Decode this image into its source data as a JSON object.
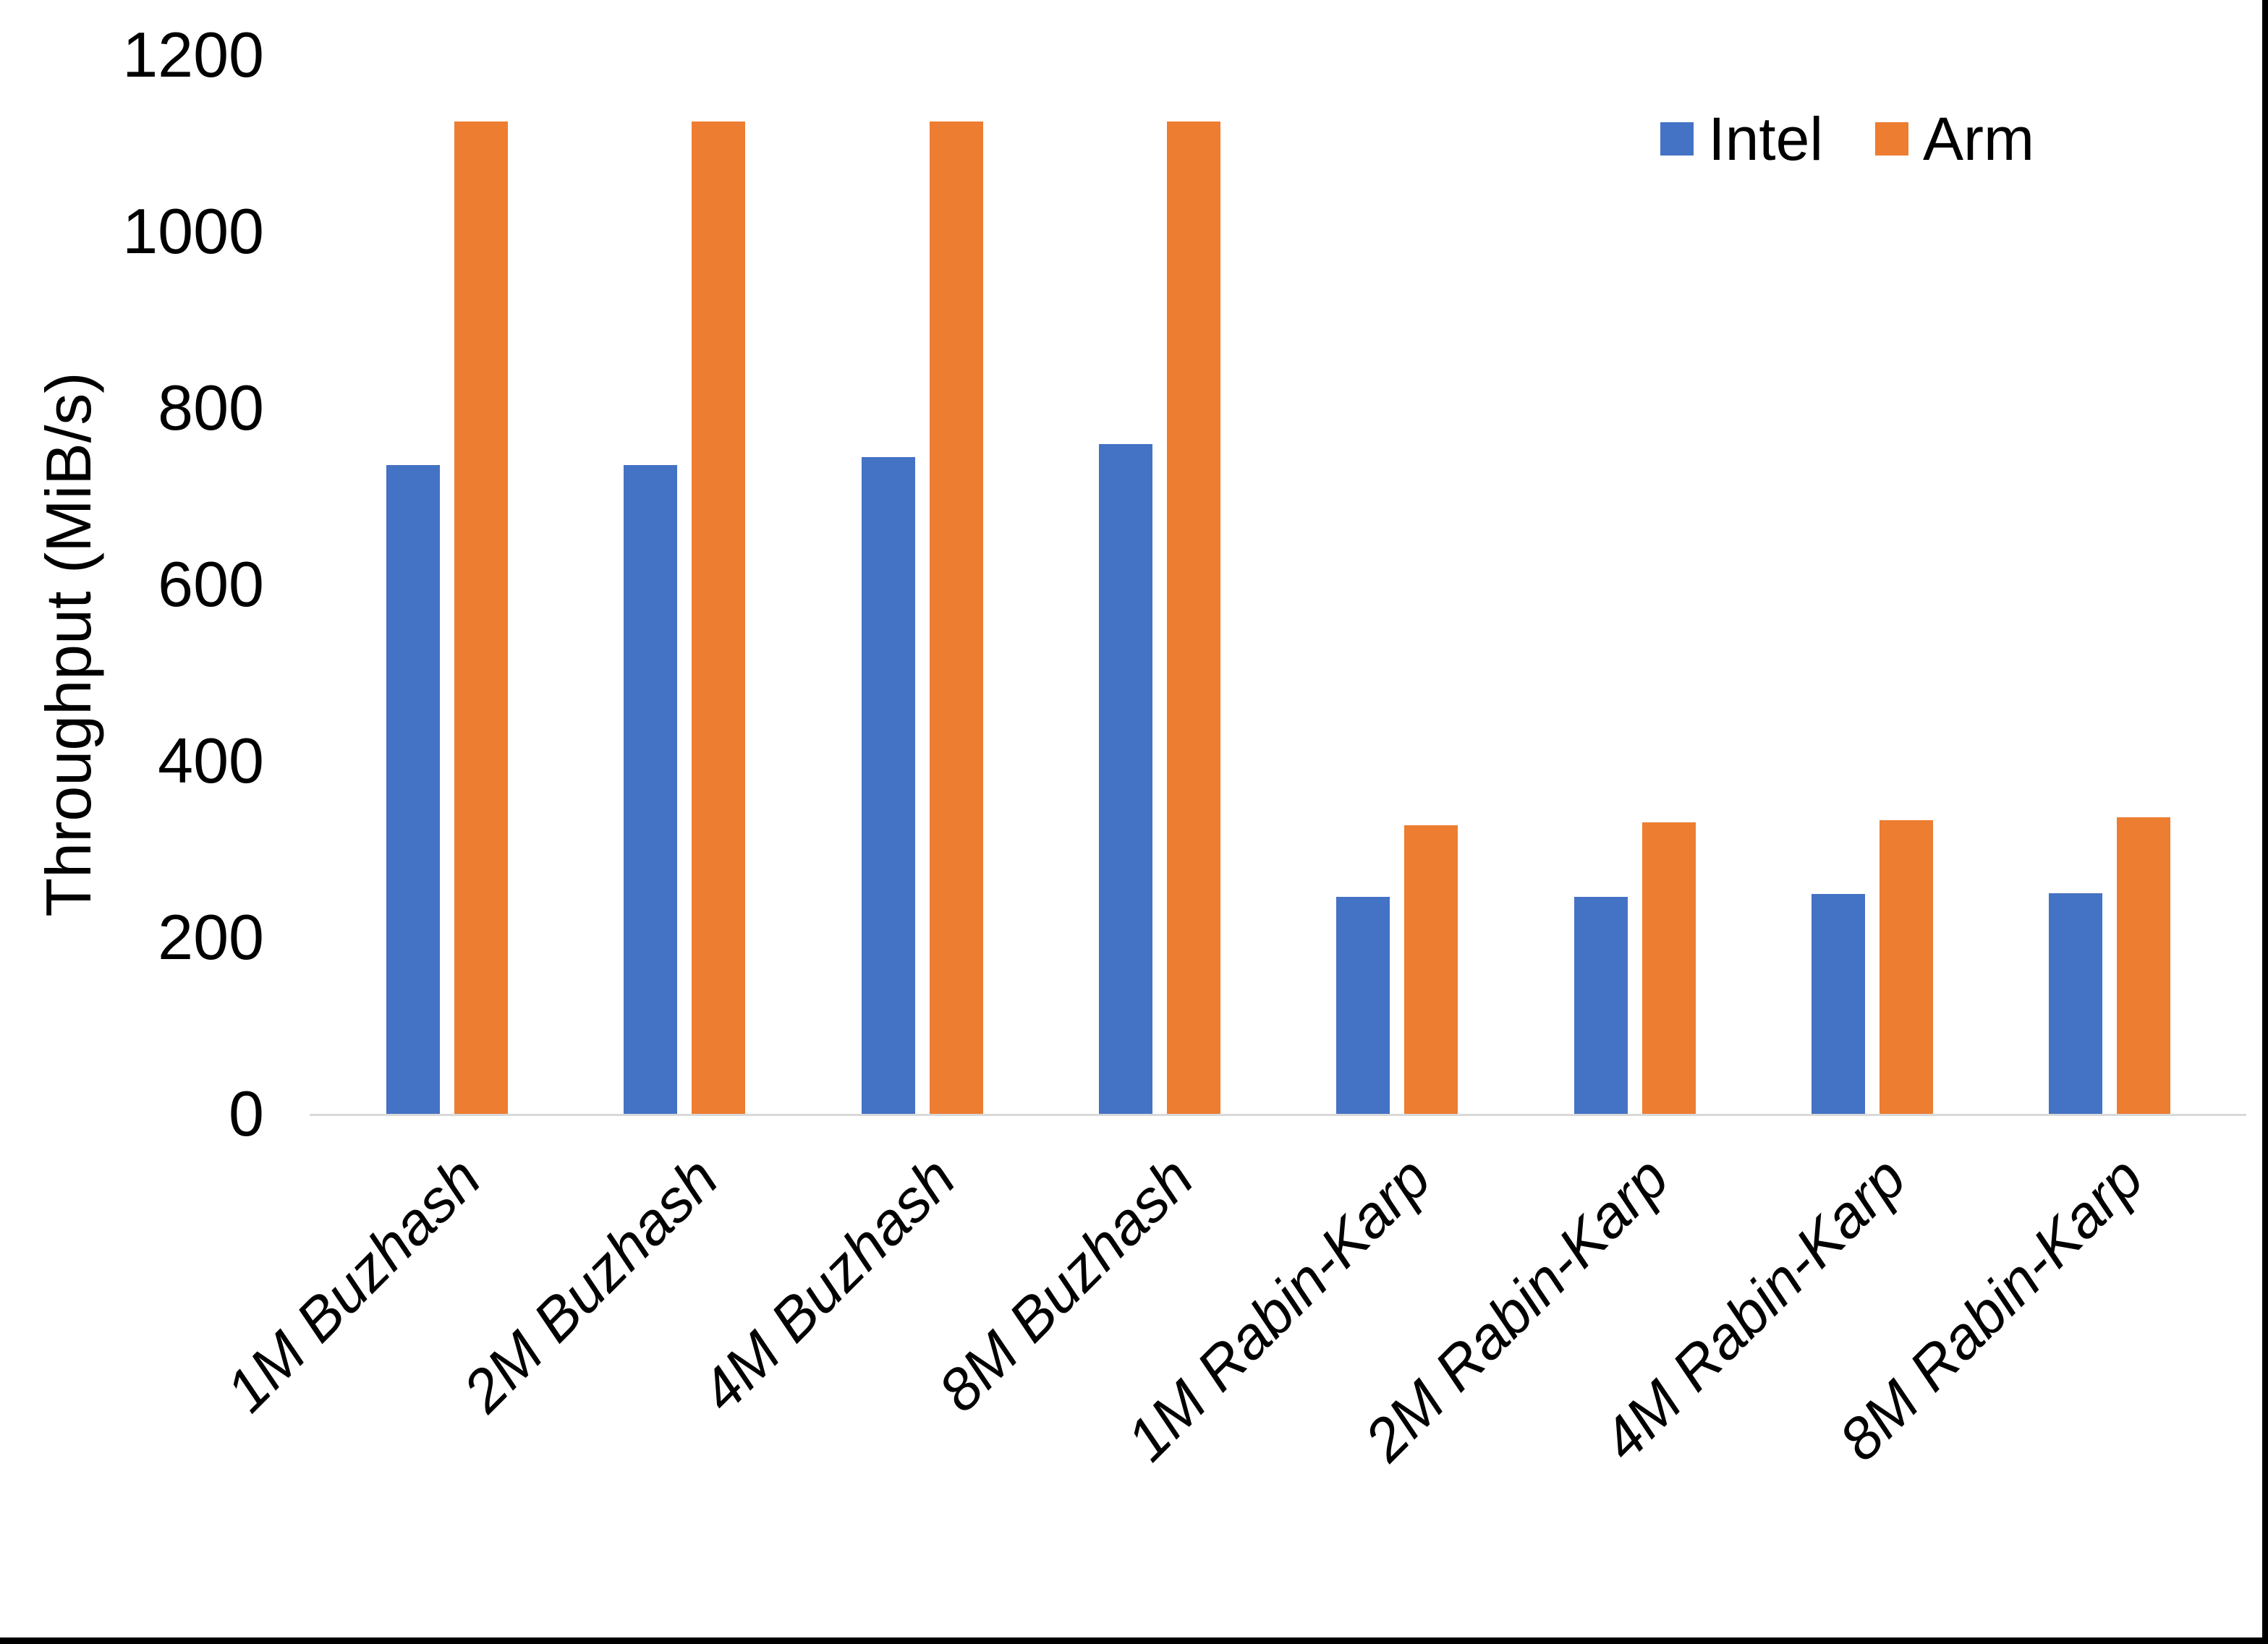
{
  "chart_data": {
    "type": "bar",
    "title": "",
    "xlabel": "",
    "ylabel": "Throughput (MiB/s)",
    "categories": [
      "1M Buzhash",
      "2M Buzhash",
      "4M Buzhash",
      "8M Buzhash",
      "1M Rabin-Karp",
      "2M Rabin-Karp",
      "4M Rabin-Karp",
      "8M Rabin-Karp"
    ],
    "series": [
      {
        "name": "Intel",
        "color": "#4472C4",
        "values": [
          735,
          735,
          744,
          759,
          246,
          246,
          249,
          250
        ]
      },
      {
        "name": "Arm",
        "color": "#ED7D31",
        "values": [
          1125,
          1125,
          1125,
          1125,
          327,
          330,
          333,
          336
        ]
      }
    ],
    "ylim": [
      0,
      1200
    ],
    "yticks": [
      0,
      200,
      400,
      600,
      800,
      1000,
      1200
    ],
    "grid": false,
    "legend_position": "top-right",
    "axis_line_color": "#d9d9d9"
  }
}
